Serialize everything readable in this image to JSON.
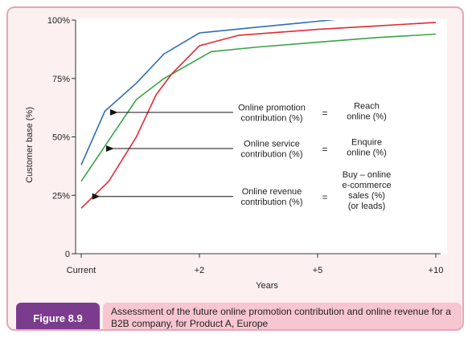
{
  "figure": {
    "label": "Figure 8.9",
    "caption": "Assessment of the future online promotion contribution and online revenue for a B2B company, for Product A, Europe"
  },
  "colors": {
    "frame_bg": "#fcf0f1",
    "frame_border": "#e9a5b6",
    "figure_label_bg": "#7b3c8e",
    "caption_bg": "#f7c6d0"
  },
  "chart_data": {
    "type": "line",
    "title": "",
    "xlabel": "Years",
    "ylabel": "Customer base (%)",
    "x_ticks": [
      "Current",
      "+2",
      "+5",
      "+10"
    ],
    "y_ticks": [
      "0",
      "25%",
      "50%",
      "75%",
      "100%"
    ],
    "ylim": [
      0,
      100
    ],
    "grid": false,
    "series": [
      {
        "key": "promotion",
        "color": "#2f6db5",
        "x": [
          0,
          0.6,
          1.4,
          2.1,
          3,
          4.5,
          6,
          7.5,
          9
        ],
        "y": [
          38,
          61,
          73,
          85.5,
          94.5,
          97,
          99.5,
          102,
          104
        ]
      },
      {
        "key": "service",
        "color": "#3aa24a",
        "x": [
          0,
          0.6,
          1.4,
          2.1,
          3.3,
          4.5,
          6,
          7.5,
          9
        ],
        "y": [
          31,
          46,
          66,
          75,
          86.5,
          88.5,
          90.5,
          92.5,
          94
        ]
      },
      {
        "key": "revenue",
        "color": "#e02b33",
        "x": [
          0,
          0.7,
          1.4,
          1.9,
          2.3,
          3,
          4,
          6,
          7.5,
          9
        ],
        "y": [
          19.5,
          31,
          50,
          68,
          77,
          89,
          93.5,
          96,
          97.5,
          99
        ]
      }
    ],
    "annotations": [
      {
        "key": "promotion",
        "label": [
          "Online promotion",
          "contribution (%)"
        ],
        "equals": "=",
        "result": [
          "Reach",
          "online (%)"
        ]
      },
      {
        "key": "service",
        "label": [
          "Online service",
          "contribution (%)"
        ],
        "equals": "=",
        "result": [
          "Enquire",
          "online (%)"
        ]
      },
      {
        "key": "revenue",
        "label": [
          "Online revenue",
          "contribution (%)"
        ],
        "equals": "=",
        "result": [
          "Buy – online",
          "e-commerce",
          "sales (%)",
          "(or leads)"
        ]
      }
    ]
  }
}
